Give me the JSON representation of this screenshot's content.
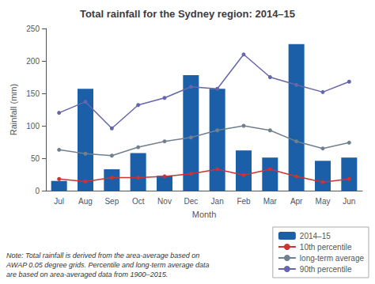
{
  "chart_data": {
    "type": "bar",
    "title": "Total rainfall for the Sydney region: 2014–15",
    "xlabel": "Month",
    "ylabel": "Rainfall (mm)",
    "categories": [
      "Jul",
      "Aug",
      "Sep",
      "Oct",
      "Nov",
      "Dec",
      "Jan",
      "Feb",
      "Mar",
      "Apr",
      "May",
      "Jun"
    ],
    "series": [
      {
        "name": "2014–15",
        "type": "bar",
        "color": "#1a5fa8",
        "values": [
          15,
          157,
          33,
          58,
          23,
          178,
          157,
          62,
          51,
          226,
          46,
          51
        ]
      },
      {
        "name": "10th percentile",
        "type": "line",
        "color": "#cc3333",
        "marker": "circle",
        "values": [
          18,
          14,
          20,
          20,
          22,
          26,
          33,
          24,
          33,
          22,
          13,
          18
        ]
      },
      {
        "name": "long-term average",
        "type": "line",
        "color": "#708090",
        "marker": "circle",
        "values": [
          63,
          57,
          54,
          67,
          76,
          82,
          93,
          100,
          93,
          76,
          65,
          74
        ]
      },
      {
        "name": "90th percentile",
        "type": "line",
        "color": "#6666aa",
        "marker": "circle",
        "values": [
          120,
          137,
          96,
          132,
          143,
          160,
          157,
          210,
          175,
          163,
          152,
          168
        ]
      }
    ],
    "ylim": [
      0,
      250
    ],
    "yticks": [
      0,
      50,
      100,
      150,
      200,
      250
    ],
    "grid": false,
    "legend": "lower right",
    "annotations": [
      "Note: Total rainfall is derived from the area-average based on\nAWAP 0.05 degree grids. Percentile and long-term average data\nare based on area-averaged data from 1900–2015."
    ]
  }
}
